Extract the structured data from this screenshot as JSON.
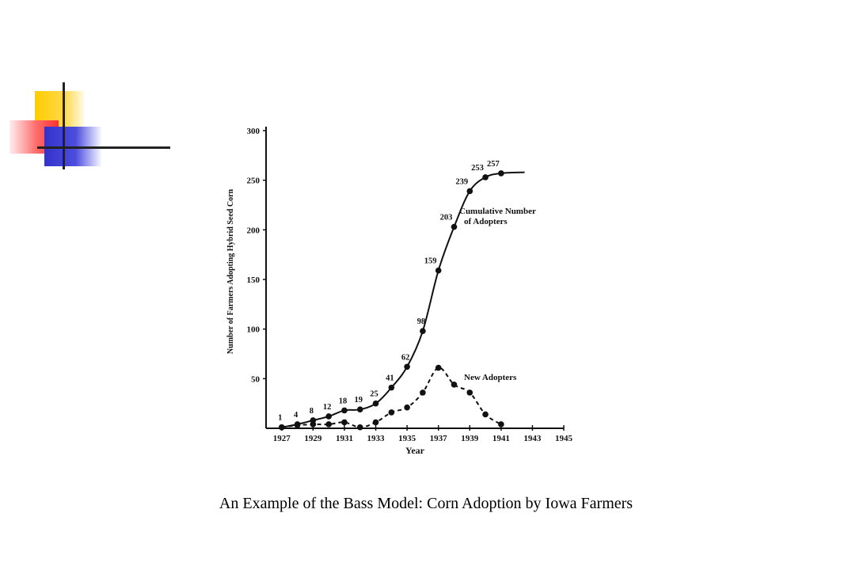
{
  "caption": "An Example of the Bass Model: Corn Adoption by Iowa Farmers",
  "chart_data": {
    "type": "line",
    "xlabel": "Year",
    "ylabel": "Number of Farmers Adopting Hybrid Seed Corn",
    "xlim": [
      1926,
      1945
    ],
    "ylim": [
      0,
      300
    ],
    "x_ticks": [
      1927,
      1929,
      1931,
      1933,
      1935,
      1937,
      1939,
      1941,
      1943,
      1945
    ],
    "y_ticks": [
      50,
      100,
      150,
      200,
      250,
      300
    ],
    "grid": false,
    "legend": "none",
    "annotations": [
      "Cumulative Number of Adopters",
      "New Adopters"
    ],
    "series": [
      {
        "style": "solid",
        "x": [
          1927,
          1928,
          1929,
          1930,
          1931,
          1932,
          1933,
          1934,
          1935,
          1936,
          1937,
          1938,
          1939,
          1940,
          1941
        ],
        "values": [
          1,
          4,
          8,
          12,
          18,
          19,
          25,
          41,
          62,
          98,
          159,
          203,
          239,
          253,
          257
        ],
        "point_labels": [
          "1",
          "4",
          "8",
          "12",
          "18",
          "19",
          "25",
          "41",
          "62",
          "98",
          "159",
          "203",
          "239",
          "253",
          "257"
        ]
      },
      {
        "style": "dashed",
        "x": [
          1927,
          1928,
          1929,
          1930,
          1931,
          1932,
          1933,
          1934,
          1935,
          1936,
          1937,
          1938,
          1939,
          1940,
          1941
        ],
        "values": [
          1,
          3,
          4,
          4,
          6,
          1,
          6,
          16,
          21,
          36,
          61,
          44,
          36,
          14,
          4
        ]
      }
    ]
  }
}
